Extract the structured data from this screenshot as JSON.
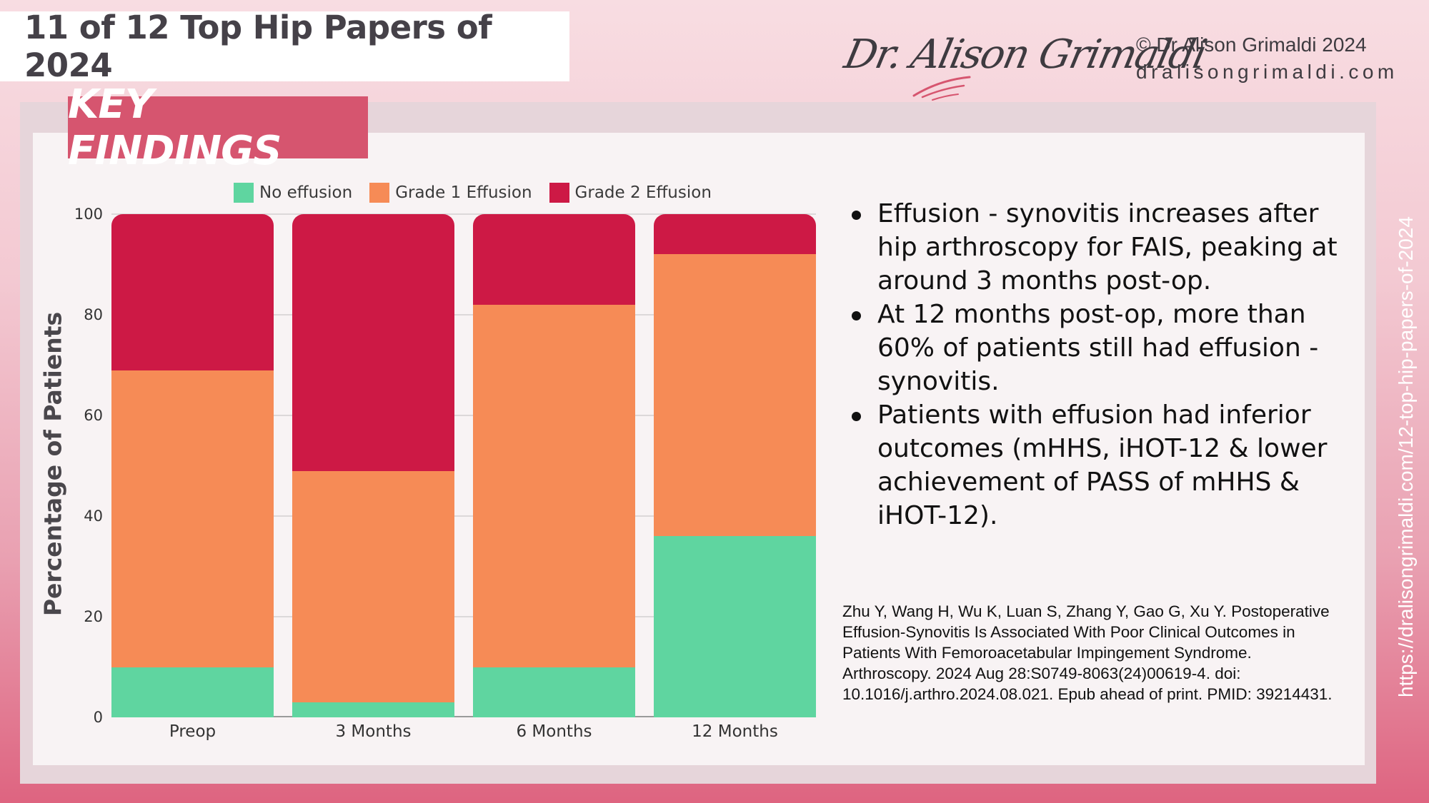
{
  "header": {
    "title": "11 of 12 Top Hip Papers of 2024",
    "signature": "Dr. Alison Grimaldi",
    "copyright": "© Dr Alison Grimaldi 2024",
    "website": "dralisongrimaldi.com",
    "vertical_url": "https://dralisongrimaldi.com/12-top-hip-papers-of-2024"
  },
  "badge": {
    "label": "KEY FINDINGS"
  },
  "colors": {
    "no_effusion": "#5fd5a0",
    "grade1": "#f68b56",
    "grade2": "#cd1945",
    "badge": "#d6556f"
  },
  "chart_data": {
    "type": "bar",
    "stacked": true,
    "title": "",
    "xlabel": "",
    "ylabel": "Percentage of Patients",
    "ylim": [
      0,
      100
    ],
    "yticks": [
      0,
      20,
      40,
      60,
      80,
      100
    ],
    "grid": true,
    "legend_position": "top",
    "categories": [
      "Preop",
      "3 Months",
      "6 Months",
      "12 Months"
    ],
    "series": [
      {
        "name": "No effusion",
        "color": "#5fd5a0",
        "values": [
          10,
          3,
          10,
          36
        ]
      },
      {
        "name": "Grade 1 Effusion",
        "color": "#f68b56",
        "values": [
          59,
          46,
          72,
          56
        ]
      },
      {
        "name": "Grade 2 Effusion",
        "color": "#cd1945",
        "values": [
          31,
          51,
          18,
          8
        ]
      }
    ]
  },
  "findings": [
    "Effusion - synovitis increases after hip arthroscopy for FAIS, peaking at around 3 months post-op.",
    "At 12 months post-op, more than 60% of patients still had effusion - synovitis.",
    "Patients with effusion had inferior outcomes (mHHS, iHOT-12 & lower achievement of PASS of mHHS & iHOT-12)."
  ],
  "reference": "Zhu Y, Wang H, Wu K, Luan S, Zhang Y, Gao G, Xu Y. Postoperative Effusion-Synovitis Is Associated With Poor Clinical Outcomes in Patients With Femoroacetabular Impingement Syndrome. Arthroscopy. 2024 Aug 28:S0749-8063(24)00619-4. doi: 10.1016/j.arthro.2024.08.021. Epub ahead of print. PMID: 39214431."
}
